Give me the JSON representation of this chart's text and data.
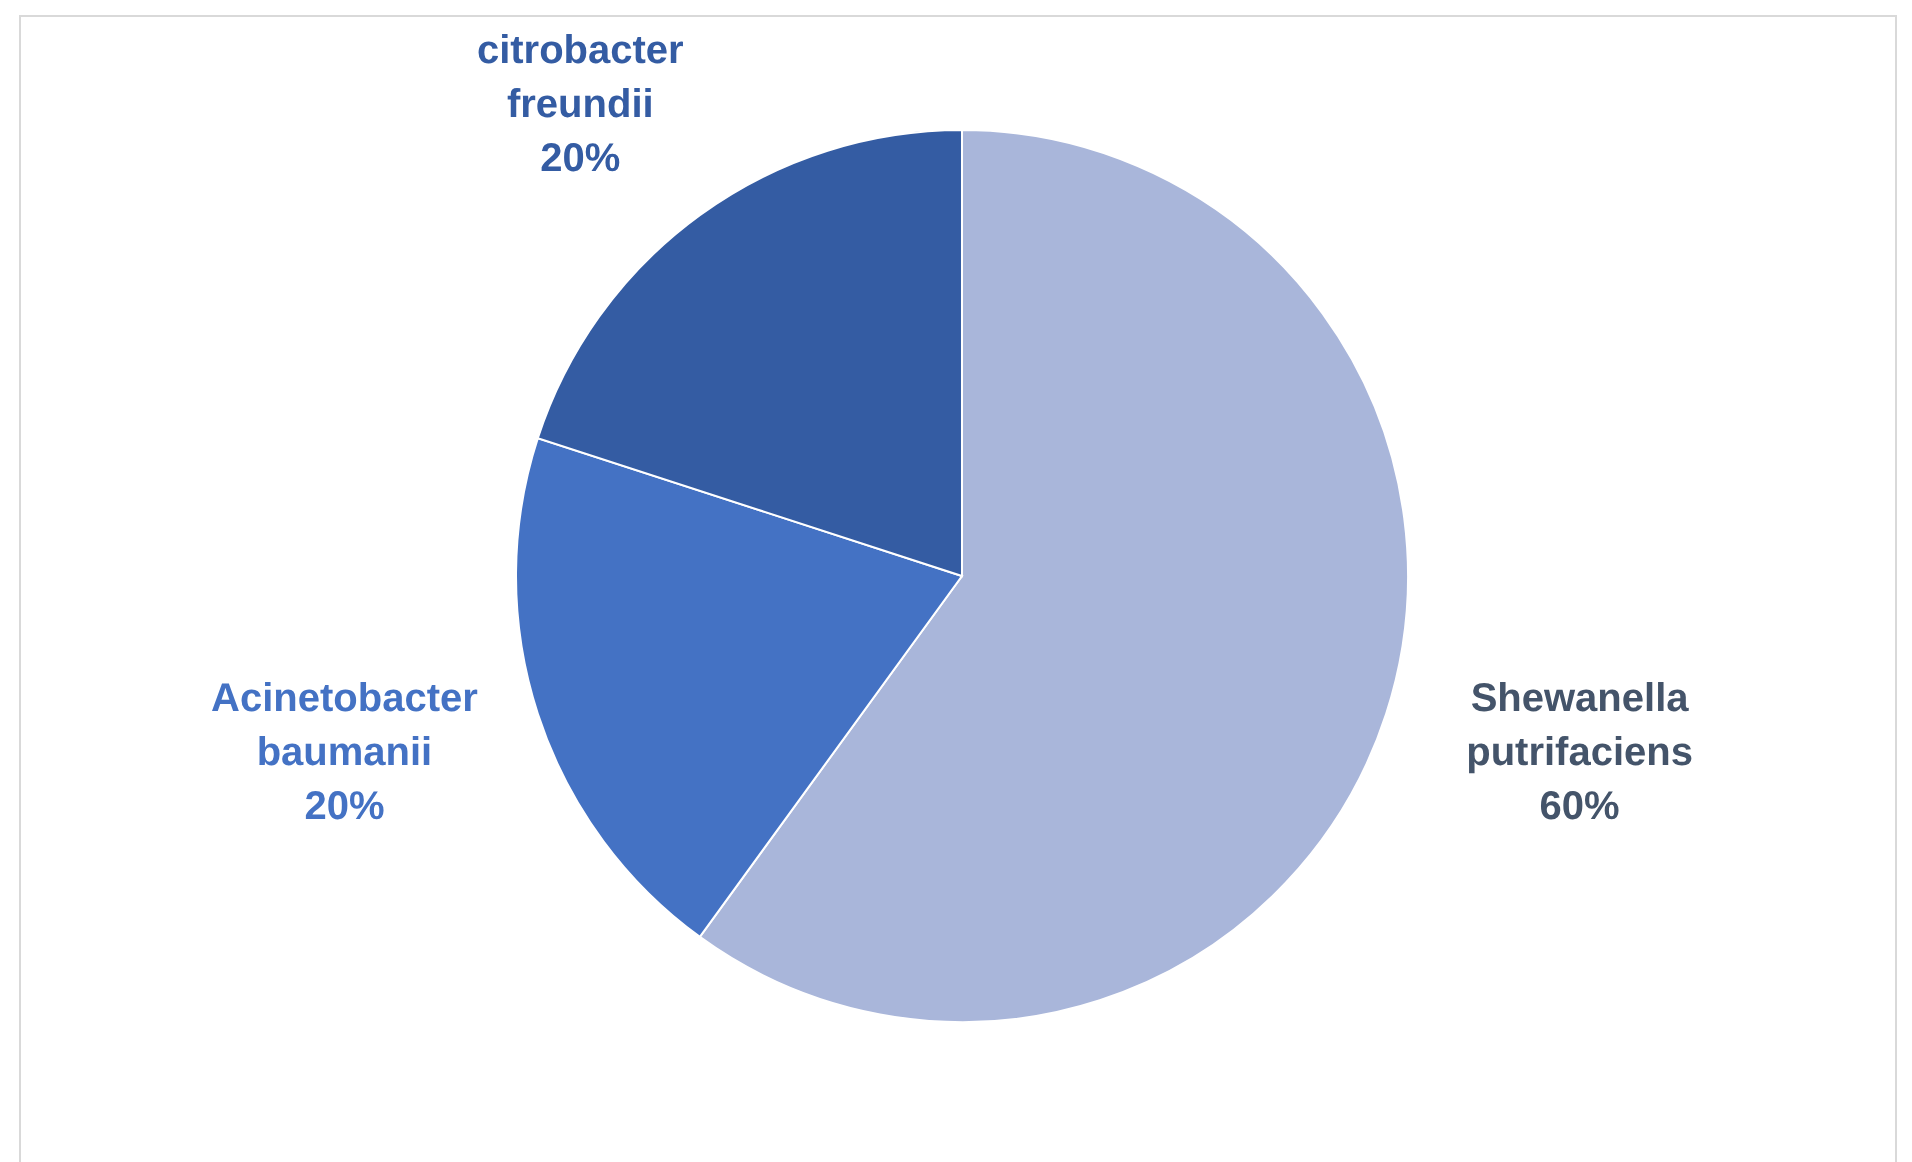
{
  "chart_data": {
    "type": "pie",
    "categories": [
      "Shewanella putrifaciens",
      "Acinetobacter baumanii",
      "citrobacter freundii"
    ],
    "values": [
      60,
      20,
      20
    ],
    "colors": [
      "#a9b6da",
      "#4472c4",
      "#345ca3"
    ],
    "value_labels": [
      "60%",
      "20%",
      "20%"
    ],
    "legend": false
  }
}
